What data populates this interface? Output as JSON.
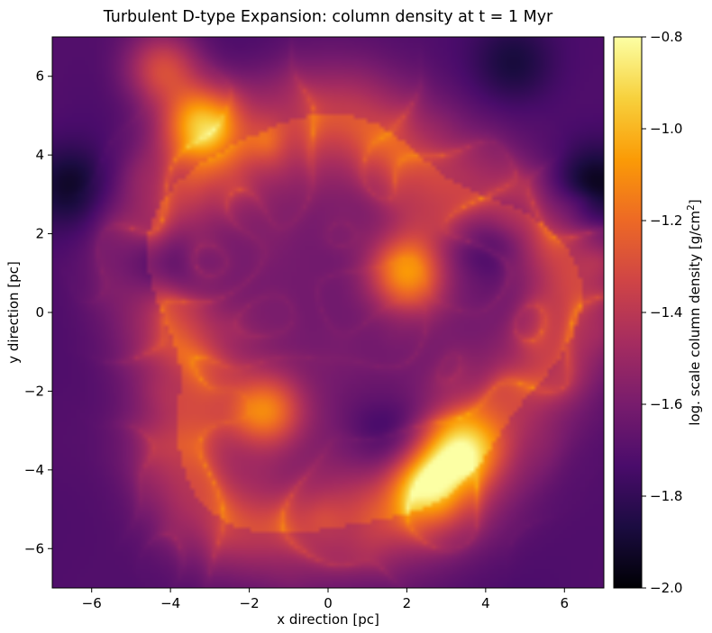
{
  "chart_data": {
    "type": "heatmap",
    "title": "Turbulent D-type Expansion: column density at t = 1 Myr",
    "xlabel": "x direction [pc]",
    "ylabel": "y direction [pc]",
    "xlim": [
      -7,
      7
    ],
    "ylim": [
      -7,
      7
    ],
    "xticks": [
      -6,
      -4,
      -2,
      0,
      2,
      4,
      6
    ],
    "yticks": [
      -6,
      -4,
      -2,
      0,
      2,
      4,
      6
    ],
    "xtick_labels": [
      "−6",
      "−4",
      "−2",
      "0",
      "2",
      "4",
      "6"
    ],
    "ytick_labels": [
      "−6",
      "−4",
      "−2",
      "0",
      "2",
      "4",
      "6"
    ],
    "colormap": "inferno",
    "colorbar": {
      "label_prefix": "log. scale column density [g/cm",
      "label_superscript": "2",
      "label_suffix": "]",
      "range": [
        -2.0,
        -0.8
      ],
      "ticks": [
        -2.0,
        -1.8,
        -1.6,
        -1.4,
        -1.2,
        -1.0,
        -0.8
      ],
      "tick_labels": [
        "−2.0",
        "−1.8",
        "−1.6",
        "−1.4",
        "−1.2",
        "−1.0",
        "−0.8"
      ]
    },
    "features": {
      "background_level": -1.72,
      "shell": {
        "center": [
          0.5,
          -0.3
        ],
        "radius_pc": 5.2,
        "peak_level": -1.1
      },
      "bright_knots": [
        {
          "x": -3.2,
          "y": 4.8,
          "level": -0.9
        },
        {
          "x": 2.0,
          "y": 1.0,
          "level": -0.95
        },
        {
          "x": -1.6,
          "y": -2.5,
          "level": -1.0
        },
        {
          "x": 2.5,
          "y": -4.4,
          "level": -1.0
        },
        {
          "x": 3.3,
          "y": -3.4,
          "level": -1.0
        },
        {
          "x": -4.2,
          "y": 6.2,
          "level": -1.15
        }
      ],
      "dark_voids": [
        {
          "x": -4.3,
          "y": 1.2,
          "level": -1.95
        },
        {
          "x": -6.5,
          "y": 3.2,
          "level": -1.9
        },
        {
          "x": 6.7,
          "y": 3.1,
          "level": -1.95
        },
        {
          "x": 4.2,
          "y": 1.8,
          "level": -1.88
        },
        {
          "x": 1.5,
          "y": -3.2,
          "level": -1.85
        },
        {
          "x": 4.7,
          "y": 6.3,
          "level": -1.85
        }
      ]
    }
  },
  "colors": {
    "background": "#ffffff",
    "axis": "#000000",
    "cmap_stops": [
      "#000004",
      "#1b0c41",
      "#4a0c6b",
      "#781c6d",
      "#a52c60",
      "#cf4446",
      "#ed6925",
      "#fb9b06",
      "#f7d13d",
      "#fcffa4"
    ]
  }
}
